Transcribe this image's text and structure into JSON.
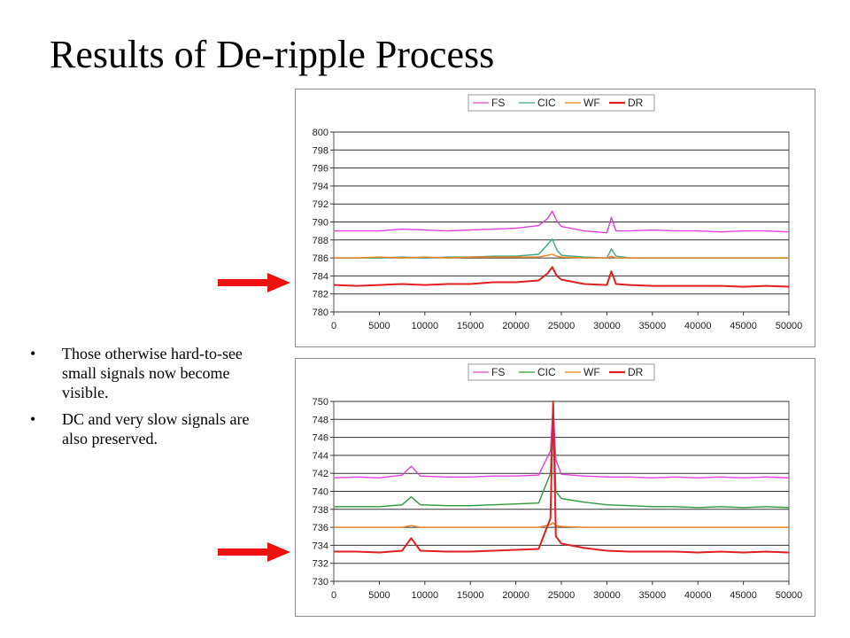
{
  "slide": {
    "title": "Results of De-ripple Process",
    "bullets": [
      "Those otherwise hard-to-see small signals now become visible.",
      "DC and very slow signals are also preserved."
    ],
    "bullet_symbol": "•",
    "arrow_color": "#ee1111"
  },
  "chart_data": [
    {
      "type": "line",
      "title": "",
      "xlabel": "",
      "ylabel": "",
      "xlim": [
        0,
        50000
      ],
      "ylim": [
        780,
        800
      ],
      "x_ticks": [
        0,
        5000,
        10000,
        15000,
        20000,
        25000,
        30000,
        35000,
        40000,
        45000,
        50000
      ],
      "y_ticks": [
        780,
        782,
        784,
        786,
        788,
        790,
        792,
        794,
        796,
        798,
        800
      ],
      "grid": "horizontal",
      "legend_position": "top",
      "series": [
        {
          "name": "FS",
          "color": "#e040e0",
          "x": [
            0,
            2500,
            5000,
            7500,
            10000,
            12500,
            15000,
            17500,
            20000,
            22500,
            23500,
            24000,
            24500,
            25000,
            27500,
            30000,
            30500,
            31000,
            32500,
            35000,
            37500,
            40000,
            42500,
            45000,
            47500,
            50000
          ],
          "y": [
            789,
            789,
            789,
            789.2,
            789.1,
            789,
            789.1,
            789.2,
            789.3,
            789.6,
            790.4,
            791.2,
            790.1,
            789.5,
            789,
            788.8,
            790.5,
            789,
            789,
            789.1,
            789,
            789,
            788.9,
            789,
            789,
            788.9
          ]
        },
        {
          "name": "CIC",
          "color": "#3aa87a",
          "x": [
            0,
            2500,
            5000,
            7500,
            10000,
            12500,
            15000,
            17500,
            20000,
            22500,
            23500,
            24000,
            24500,
            25000,
            27500,
            30000,
            30500,
            31000,
            32500,
            35000,
            37500,
            40000,
            42500,
            45000,
            47500,
            50000
          ],
          "y": [
            786,
            786,
            786,
            786.1,
            786,
            786.1,
            786.1,
            786.2,
            786.2,
            786.4,
            787.5,
            788.1,
            786.9,
            786.3,
            786.1,
            786,
            787,
            786.2,
            786,
            786,
            786,
            786,
            786,
            786,
            786,
            786
          ]
        },
        {
          "name": "WF",
          "color": "#f08020",
          "x": [
            0,
            2500,
            5000,
            7500,
            10000,
            12500,
            15000,
            17500,
            20000,
            22500,
            23500,
            24000,
            24500,
            25000,
            27500,
            30000,
            30500,
            31000,
            32500,
            35000,
            37500,
            40000,
            42500,
            45000,
            47500,
            50000
          ],
          "y": [
            786,
            786,
            786.1,
            786,
            786.1,
            786,
            786.1,
            786.1,
            786.1,
            786.1,
            786.3,
            786.4,
            786.2,
            786.1,
            786,
            786,
            786.2,
            786,
            786,
            786,
            786,
            786,
            786,
            786,
            786,
            786
          ]
        },
        {
          "name": "DR",
          "color": "#e02020",
          "x": [
            0,
            2500,
            5000,
            7500,
            10000,
            12500,
            15000,
            17500,
            20000,
            22500,
            23500,
            24000,
            24500,
            25000,
            27500,
            30000,
            30500,
            31000,
            32500,
            35000,
            37500,
            40000,
            42500,
            45000,
            47500,
            50000
          ],
          "y": [
            783,
            782.9,
            783,
            783.1,
            783,
            783.1,
            783.1,
            783.3,
            783.3,
            783.5,
            784.3,
            785,
            784,
            783.6,
            783.1,
            783,
            784.5,
            783.1,
            783,
            782.9,
            782.9,
            782.9,
            782.9,
            782.8,
            782.9,
            782.8
          ]
        }
      ]
    },
    {
      "type": "line",
      "title": "",
      "xlabel": "",
      "ylabel": "",
      "xlim": [
        0,
        50000
      ],
      "ylim": [
        730,
        750
      ],
      "x_ticks": [
        0,
        5000,
        10000,
        15000,
        20000,
        25000,
        30000,
        35000,
        40000,
        45000,
        50000
      ],
      "y_ticks": [
        730,
        732,
        734,
        736,
        738,
        740,
        742,
        744,
        746,
        748,
        750
      ],
      "grid": "horizontal",
      "legend_position": "top",
      "series": [
        {
          "name": "FS",
          "color": "#e040e0",
          "x": [
            0,
            2500,
            5000,
            7500,
            8500,
            9500,
            12500,
            15000,
            17500,
            20000,
            22500,
            23800,
            24100,
            24400,
            25000,
            27500,
            30000,
            32500,
            35000,
            37500,
            40000,
            42500,
            45000,
            47500,
            50000
          ],
          "y": [
            741.5,
            741.6,
            741.5,
            741.8,
            742.8,
            741.7,
            741.6,
            741.6,
            741.7,
            741.7,
            741.8,
            744.5,
            749.5,
            743.5,
            741.9,
            741.7,
            741.6,
            741.6,
            741.5,
            741.6,
            741.5,
            741.6,
            741.5,
            741.6,
            741.5
          ]
        },
        {
          "name": "CIC",
          "color": "#2a9a3a",
          "x": [
            0,
            2500,
            5000,
            7500,
            8500,
            9500,
            12500,
            15000,
            17500,
            20000,
            22500,
            23800,
            24100,
            24400,
            25000,
            27500,
            30000,
            32500,
            35000,
            37500,
            40000,
            42500,
            45000,
            47500,
            50000
          ],
          "y": [
            738.3,
            738.3,
            738.3,
            738.5,
            739.4,
            738.5,
            738.4,
            738.4,
            738.5,
            738.6,
            738.7,
            742,
            749,
            740,
            739.2,
            738.8,
            738.5,
            738.4,
            738.3,
            738.3,
            738.2,
            738.3,
            738.2,
            738.3,
            738.2
          ]
        },
        {
          "name": "WF",
          "color": "#f08020",
          "x": [
            0,
            2500,
            5000,
            7500,
            8500,
            9500,
            12500,
            15000,
            17500,
            20000,
            22500,
            23800,
            24100,
            24400,
            25000,
            27500,
            30000,
            32500,
            35000,
            37500,
            40000,
            42500,
            45000,
            47500,
            50000
          ],
          "y": [
            736,
            736,
            736,
            736,
            736.2,
            736,
            736,
            736,
            736,
            736,
            736,
            736.3,
            736.5,
            736.2,
            736.1,
            736,
            736,
            736,
            736,
            736,
            736,
            736,
            736,
            736,
            736
          ]
        },
        {
          "name": "DR",
          "color": "#e02020",
          "x": [
            0,
            2500,
            5000,
            7500,
            8500,
            9500,
            12500,
            15000,
            17500,
            20000,
            22500,
            23800,
            24100,
            24400,
            25000,
            27500,
            30000,
            32500,
            35000,
            37500,
            40000,
            42500,
            45000,
            47500,
            50000
          ],
          "y": [
            733.3,
            733.3,
            733.2,
            733.4,
            734.8,
            733.4,
            733.3,
            733.3,
            733.4,
            733.5,
            733.6,
            737,
            750,
            735,
            734.2,
            733.7,
            733.4,
            733.3,
            733.3,
            733.3,
            733.2,
            733.3,
            733.2,
            733.3,
            733.2
          ]
        }
      ]
    }
  ]
}
